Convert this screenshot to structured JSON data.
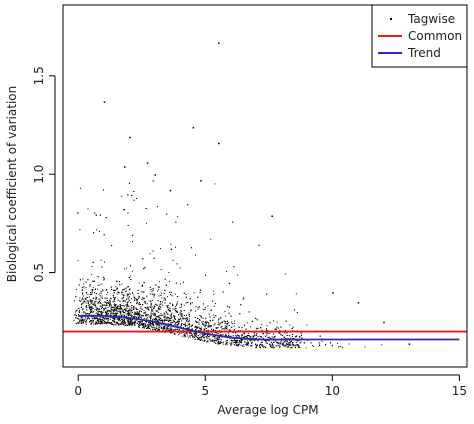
{
  "chart_data": {
    "type": "scatter",
    "title": "",
    "xlabel": "Average log CPM",
    "ylabel": "Biological coefficient of variation",
    "xlim": [
      -0.6,
      15.3
    ],
    "ylim": [
      0.02,
      1.86
    ],
    "xticks": [
      0,
      5,
      10,
      15
    ],
    "yticks": [
      0.5,
      1.0,
      1.5
    ],
    "xtick_labels": [
      "0",
      "5",
      "10",
      "15"
    ],
    "ytick_labels": [
      "0.5",
      "1.0",
      "1.5"
    ],
    "grid": false,
    "legend_position": "top-right",
    "series": [
      {
        "name": "Tagwise",
        "kind": "points",
        "color": "#000000",
        "cloud_bounds": {
          "x_range": [
            -0.2,
            13.0
          ],
          "y_range": [
            0.12,
            1.0
          ]
        },
        "points_sample": [
          [
            5.5,
            1.67
          ],
          [
            1.0,
            1.37
          ],
          [
            4.5,
            1.24
          ],
          [
            2.0,
            1.19
          ],
          [
            5.5,
            1.16
          ],
          [
            2.7,
            1.06
          ],
          [
            1.8,
            1.04
          ],
          [
            3.0,
            1.0
          ],
          [
            4.8,
            0.97
          ],
          [
            3.6,
            0.92
          ],
          [
            7.6,
            0.79
          ],
          [
            10.0,
            0.4
          ],
          [
            11.0,
            0.35
          ],
          [
            12.0,
            0.25
          ],
          [
            13.0,
            0.14
          ]
        ]
      },
      {
        "name": "Common",
        "kind": "line",
        "color": "#e41a1c",
        "x": [
          -0.6,
          15.3
        ],
        "y": [
          0.2,
          0.2
        ]
      },
      {
        "name": "Trend",
        "kind": "line",
        "color": "#2b2bb0",
        "x": [
          0,
          1,
          2,
          3,
          4,
          5,
          6,
          7,
          8,
          9,
          10,
          11,
          12,
          13,
          14,
          15
        ],
        "y": [
          0.28,
          0.28,
          0.27,
          0.25,
          0.22,
          0.19,
          0.17,
          0.16,
          0.16,
          0.16,
          0.16,
          0.16,
          0.16,
          0.16,
          0.16,
          0.16
        ]
      }
    ]
  }
}
